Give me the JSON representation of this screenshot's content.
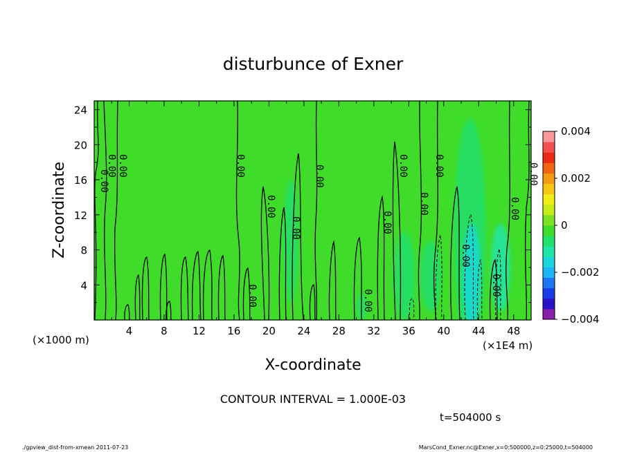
{
  "chart_data": {
    "type": "heatmap",
    "title": "disturbunce of Exner",
    "xlabel": "X-coordinate",
    "ylabel": "Z-coordinate",
    "x_unit_label": "(×1E4 m)",
    "y_unit_label": "(×1000 m)",
    "x_ticks": [
      "4",
      "8",
      "12",
      "16",
      "20",
      "24",
      "28",
      "32",
      "36",
      "40",
      "44",
      "48"
    ],
    "x_tick_values": [
      4,
      8,
      12,
      16,
      20,
      24,
      28,
      32,
      36,
      40,
      44,
      48
    ],
    "y_ticks": [
      "4",
      "8",
      "12",
      "16",
      "20",
      "24"
    ],
    "y_tick_values": [
      4,
      8,
      12,
      16,
      20,
      24
    ],
    "xlim": [
      0,
      50
    ],
    "ylim": [
      0,
      25
    ],
    "colorbar": {
      "labels": [
        "0.004",
        "0.002",
        "0",
        "−0.002",
        "−0.004"
      ],
      "values": [
        0.004,
        0.002,
        0,
        -0.002,
        -0.004
      ],
      "range": [
        -0.004,
        0.004
      ],
      "colors": [
        "#8a1faa",
        "#2a12c8",
        "#1a3ce6",
        "#1f74f2",
        "#1fb4f5",
        "#18d8dc",
        "#20e6a8",
        "#22e06c",
        "#3fdc2a",
        "#7de020",
        "#c6ec1a",
        "#f2ec16",
        "#f5c612",
        "#f29a10",
        "#ee6410",
        "#ea2a14",
        "#f45050",
        "#f89898"
      ]
    },
    "contour_labels": [
      "0.00"
    ],
    "contour_interval_text": "CONTOUR INTERVAL = 1.000E-03",
    "time_text": "t=504000 s",
    "low_regions": [
      {
        "x": 22.5,
        "z": 9,
        "w": 0.8,
        "h": 14,
        "level": -0.0006
      },
      {
        "x": 35.5,
        "z": 5,
        "w": 1.2,
        "h": 10,
        "level": -0.0008
      },
      {
        "x": 38.5,
        "z": 5,
        "w": 1.2,
        "h": 8,
        "level": -0.0006
      },
      {
        "x": 43,
        "z": 10,
        "w": 1.8,
        "h": 26,
        "level": -0.0008
      },
      {
        "x": 43.2,
        "z": 5,
        "w": 1.0,
        "h": 12,
        "level": -0.0016
      },
      {
        "x": 46.5,
        "z": 6,
        "w": 1.1,
        "h": 10,
        "level": -0.0009
      },
      {
        "x": 30.6,
        "z": 1.5,
        "w": 0.6,
        "h": 3,
        "level": -0.0005
      }
    ]
  },
  "footer": {
    "left": "./gpview_dist-from-xmean  2011-07-23",
    "right": "MarsCond_Exner.nc@Exner,x=0:500000,z=0:25000,t=504000"
  }
}
